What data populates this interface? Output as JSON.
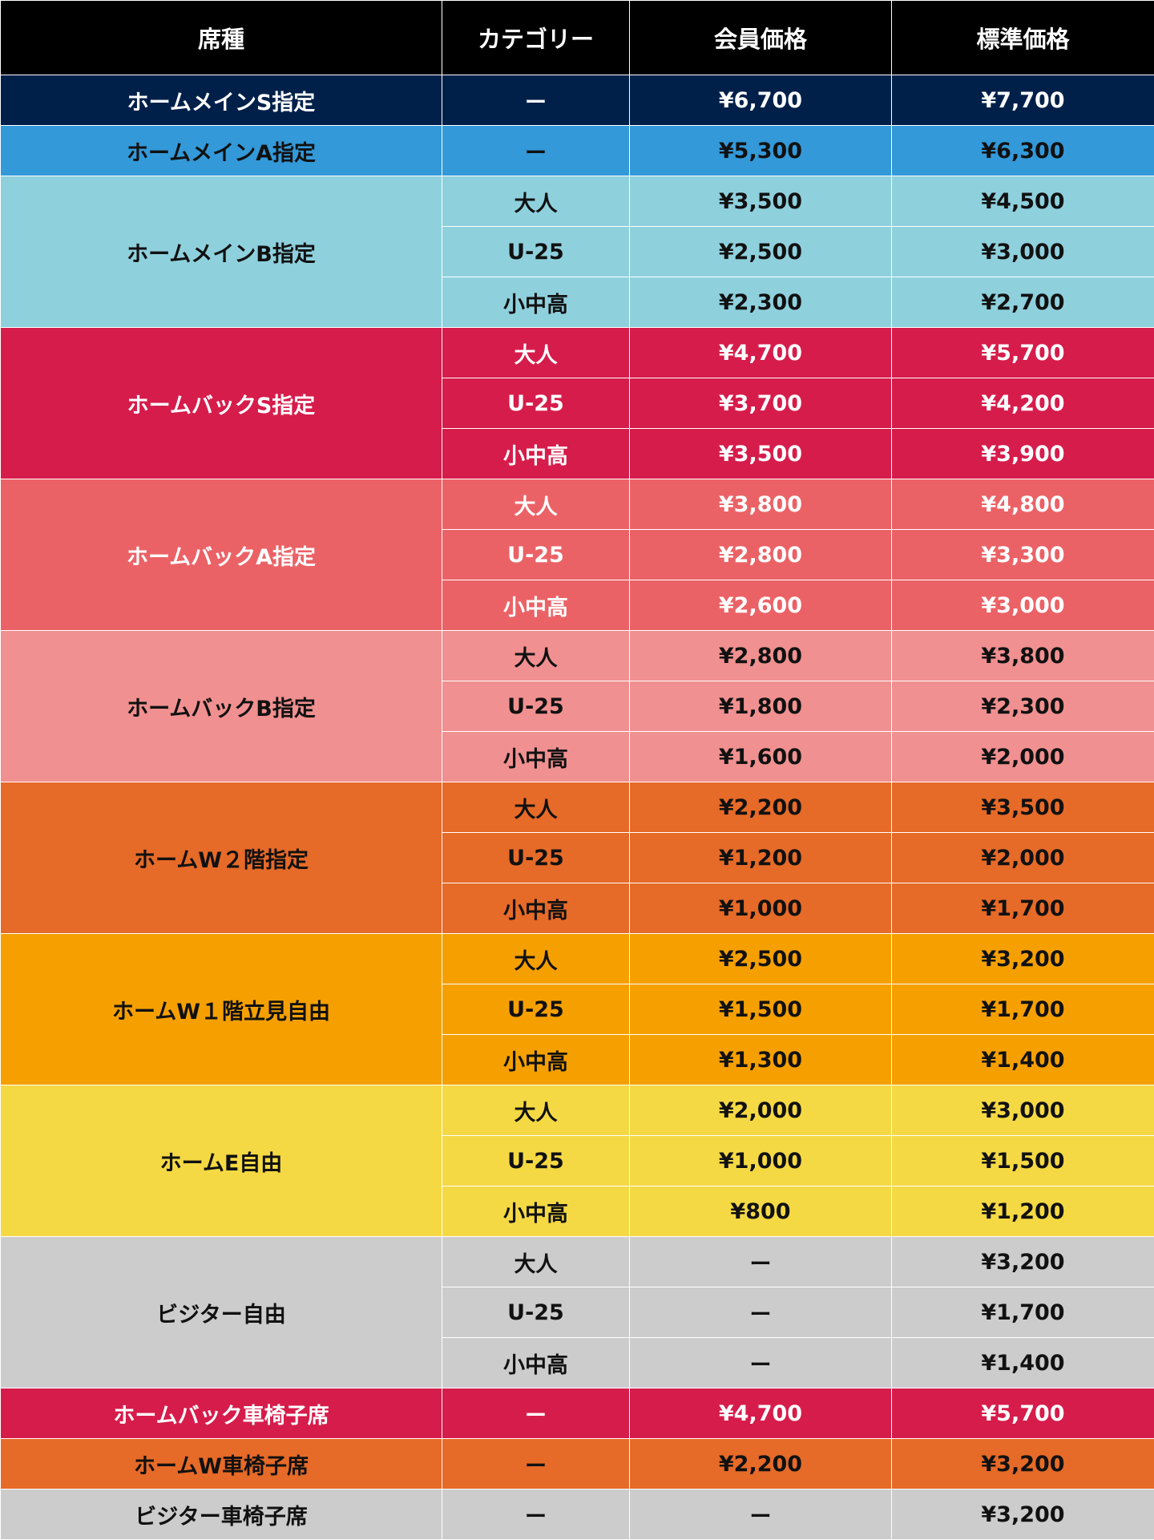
{
  "table": {
    "header": [
      "席種",
      "カテゴリー",
      "会員価格",
      "標準価格"
    ],
    "groups": [
      {
        "seat": "ホームメインS指定",
        "color": "#00204a",
        "text_color": "#ffffff",
        "rows": [
          [
            "ー",
            "¥6,700",
            "¥7,700"
          ]
        ]
      },
      {
        "seat": "ホームメインA指定",
        "color": "#3399d9",
        "text_color": "#111111",
        "rows": [
          [
            "ー",
            "¥5,300",
            "¥6,300"
          ]
        ]
      },
      {
        "seat": "ホームメインB指定",
        "color": "#8fd0dd",
        "text_color": "#111111",
        "rows": [
          [
            "大人",
            "¥3,500",
            "¥4,500"
          ],
          [
            "U-25",
            "¥2,500",
            "¥3,000"
          ],
          [
            "小中高",
            "¥2,300",
            "¥2,700"
          ]
        ]
      },
      {
        "seat": "ホームバックS指定",
        "color": "#d61c4b",
        "text_color": "#ffffff",
        "rows": [
          [
            "大人",
            "¥4,700",
            "¥5,700"
          ],
          [
            "U-25",
            "¥3,700",
            "¥4,200"
          ],
          [
            "小中高",
            "¥3,500",
            "¥3,900"
          ]
        ]
      },
      {
        "seat": "ホームバックA指定",
        "color": "#eb6266",
        "text_color": "#ffffff",
        "rows": [
          [
            "大人",
            "¥3,800",
            "¥4,800"
          ],
          [
            "U-25",
            "¥2,800",
            "¥3,300"
          ],
          [
            "小中高",
            "¥2,600",
            "¥3,000"
          ]
        ]
      },
      {
        "seat": "ホームバックB指定",
        "color": "#f09090",
        "text_color": "#111111",
        "rows": [
          [
            "大人",
            "¥2,800",
            "¥3,800"
          ],
          [
            "U-25",
            "¥1,800",
            "¥2,300"
          ],
          [
            "小中高",
            "¥1,600",
            "¥2,000"
          ]
        ]
      },
      {
        "seat": "ホームW２階指定",
        "color": "#e66a28",
        "text_color": "#111111",
        "rows": [
          [
            "大人",
            "¥2,200",
            "¥3,500"
          ],
          [
            "U-25",
            "¥1,200",
            "¥2,000"
          ],
          [
            "小中高",
            "¥1,000",
            "¥1,700"
          ]
        ]
      },
      {
        "seat": "ホームW１階立見自由",
        "color": "#f5a000",
        "text_color": "#111111",
        "rows": [
          [
            "大人",
            "¥2,500",
            "¥3,200"
          ],
          [
            "U-25",
            "¥1,500",
            "¥1,700"
          ],
          [
            "小中高",
            "¥1,300",
            "¥1,400"
          ]
        ]
      },
      {
        "seat": "ホームE自由",
        "color": "#f5d944",
        "text_color": "#111111",
        "rows": [
          [
            "大人",
            "¥2,000",
            "¥3,000"
          ],
          [
            "U-25",
            "¥1,000",
            "¥1,500"
          ],
          [
            "小中高",
            "¥800",
            "¥1,200"
          ]
        ]
      },
      {
        "seat": "ビジター自由",
        "color": "#cccccc",
        "text_color": "#111111",
        "rows": [
          [
            "大人",
            "ー",
            "¥3,200"
          ],
          [
            "U-25",
            "ー",
            "¥1,700"
          ],
          [
            "小中高",
            "ー",
            "¥1,400"
          ]
        ]
      },
      {
        "seat": "ホームバック車椅子席",
        "color": "#d61c4b",
        "text_color": "#ffffff",
        "rows": [
          [
            "ー",
            "¥4,700",
            "¥5,700"
          ]
        ]
      },
      {
        "seat": "ホームW車椅子席",
        "color": "#e66a28",
        "text_color": "#111111",
        "rows": [
          [
            "ー",
            "¥2,200",
            "¥3,200"
          ]
        ]
      },
      {
        "seat": "ビジター車椅子席",
        "color": "#cccccc",
        "text_color": "#111111",
        "rows": [
          [
            "ー",
            "ー",
            "¥3,200"
          ]
        ]
      }
    ]
  }
}
